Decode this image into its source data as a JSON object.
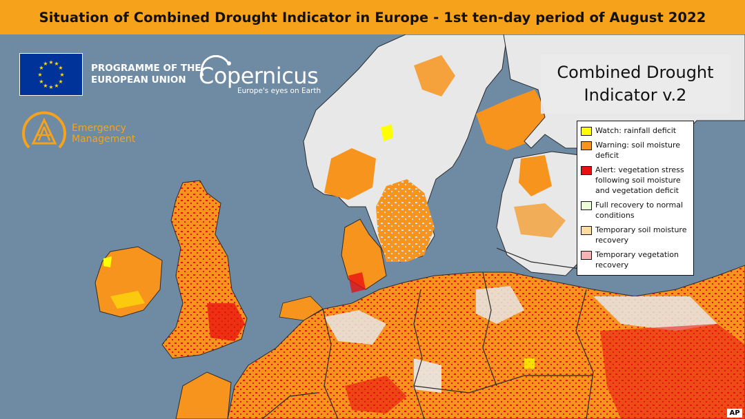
{
  "banner": {
    "title": "Situation of Combined Drought Indicator in Europe - 1st ten-day period of August 2022",
    "background_color": "#f6a31b"
  },
  "logos": {
    "eu_programme": {
      "line1": "PROGRAMME OF THE",
      "line2": "EUROPEAN UNION",
      "flag_color": "#003399",
      "star_color": "#ffdd00"
    },
    "copernicus": {
      "wordmark": "Copernicus",
      "tagline": "Europe's eyes on Earth"
    },
    "emergency_management": {
      "line1": "Emergency",
      "line2": "Management",
      "color": "#f6a31b"
    }
  },
  "indicator_title": "Combined Drought\nIndicator v.2",
  "legend": [
    {
      "label": "Watch: rainfall deficit",
      "color": "#ffff00"
    },
    {
      "label": "Warning: soil moisture deficit",
      "color": "#f7941d"
    },
    {
      "label": "Alert: vegetation stress following soil moisture and vegetation deficit",
      "color": "#e81010"
    },
    {
      "label": "Full recovery to normal conditions",
      "color": "#ecfbd8"
    },
    {
      "label": "Temporary soil moisture recovery",
      "color": "#fcdca0"
    },
    {
      "label": "Temporary vegetation recovery",
      "color": "#f7b3b3"
    }
  ],
  "map": {
    "sea_color": "#6f8aa3",
    "land_color": "#e8e8e8",
    "border_color": "#2a2a2a"
  },
  "credit": "AP"
}
